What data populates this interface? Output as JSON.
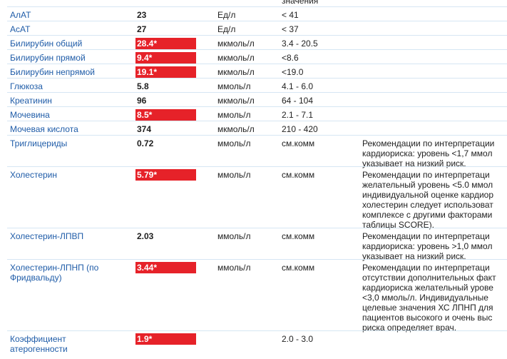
{
  "header": {
    "norm_caption": "значения"
  },
  "rows": [
    {
      "name": [
        "АлАТ"
      ],
      "value": "23",
      "unit": "Ед/л",
      "norm": "< 41",
      "comment": []
    },
    {
      "name": [
        "АсАТ"
      ],
      "value": "27",
      "unit": "Ед/л",
      "norm": "< 37",
      "comment": []
    },
    {
      "name": [
        "Билирубин общий"
      ],
      "value": "28.4*",
      "unit": "мкмоль/л",
      "norm": "3.4 - 20.5",
      "comment": []
    },
    {
      "name": [
        "Билирубин прямой"
      ],
      "value": "9.4*",
      "unit": "мкмоль/л",
      "norm": "<8.6",
      "comment": []
    },
    {
      "name": [
        "Билирубин непрямой"
      ],
      "value": "19.1*",
      "unit": "мкмоль/л",
      "norm": "<19.0",
      "comment": []
    },
    {
      "name": [
        "Глюкоза"
      ],
      "value": "5.8",
      "unit": "ммоль/л",
      "norm": "4.1 - 6.0",
      "comment": []
    },
    {
      "name": [
        "Креатинин"
      ],
      "value": "96",
      "unit": "мкмоль/л",
      "norm": "64 - 104",
      "comment": []
    },
    {
      "name": [
        "Мочевина"
      ],
      "value": "8.5*",
      "unit": "ммоль/л",
      "norm": "2.1 - 7.1",
      "comment": []
    },
    {
      "name": [
        "Мочевая кислота"
      ],
      "value": "374",
      "unit": "мкмоль/л",
      "norm": "210 - 420",
      "comment": []
    },
    {
      "name": [
        "Триглицериды"
      ],
      "value": "0.72",
      "unit": "ммоль/л",
      "norm": "см.комм",
      "comment": [
        "Рекомендации по интерпретации",
        "кардиориска: уровень <1,7 ммол",
        "указывает на низкий риск."
      ]
    },
    {
      "name": [
        "Холестерин"
      ],
      "value": "5.79*",
      "unit": "ммоль/л",
      "norm": "см.комм",
      "comment": [
        "Рекомендации по интерпретаци",
        "желательный уровень <5.0 ммол",
        "индивидуальной оценке кардиор",
        "холестерин следует использоват",
        "комплексе с другими факторами",
        "таблицы SCORE)."
      ]
    },
    {
      "name": [
        "Холестерин-ЛПВП"
      ],
      "value": "2.03",
      "unit": "ммоль/л",
      "norm": "см.комм",
      "comment": [
        "Рекомендации по интерпретаци",
        "кардиориска: уровень >1,0 ммол",
        "указывает на низкий риск."
      ]
    },
    {
      "name": [
        "Холестерин-ЛПНП (по",
        "Фридвальду)"
      ],
      "value": "3.44*",
      "unit": "ммоль/л",
      "norm": "см.комм",
      "comment": [
        "Рекомендации по интерпретаци",
        "отсутствии дополнительных факт",
        "кардиориска желательный урове",
        "<3,0 ммоль/л. Индивидуальные",
        "целевые значения ХС ЛПНП для",
        "пациентов высокого и очень выс",
        "риска определяет врач."
      ]
    },
    {
      "name": [
        "Коэффициент",
        "атерогенности"
      ],
      "value": "1.9*",
      "unit": "",
      "norm": "2.0 - 3.0",
      "comment": []
    }
  ]
}
